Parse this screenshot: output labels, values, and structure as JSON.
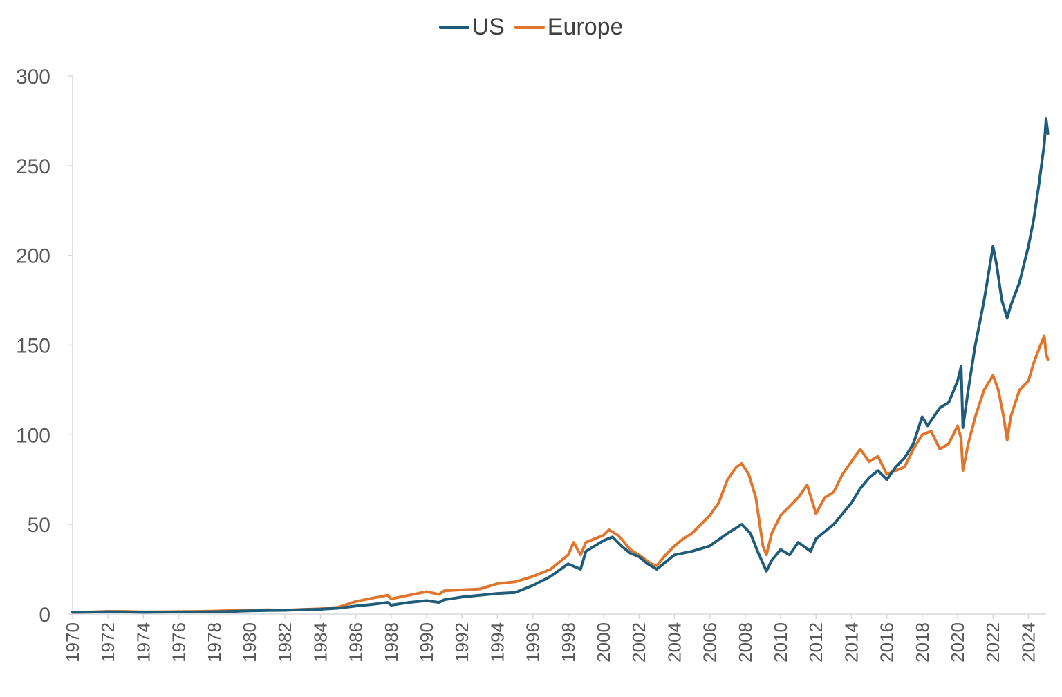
{
  "chart_data": {
    "type": "line",
    "title": "",
    "xlabel": "",
    "ylabel": "",
    "ylim": [
      0,
      300
    ],
    "xlim": [
      1970,
      2025
    ],
    "grid": false,
    "legend_position": "top-center",
    "y_ticks": [
      "0",
      "50",
      "100",
      "150",
      "200",
      "250",
      "300"
    ],
    "x_ticks": [
      "1970",
      "1972",
      "1974",
      "1976",
      "1978",
      "1980",
      "1982",
      "1984",
      "1986",
      "1988",
      "1990",
      "1992",
      "1994",
      "1996",
      "1998",
      "2000",
      "2002",
      "2004",
      "2006",
      "2008",
      "2010",
      "2012",
      "2014",
      "2016",
      "2018",
      "2020",
      "2022",
      "2024"
    ],
    "series": [
      {
        "name": "US",
        "color": "#1f5c7a",
        "points": [
          [
            1970,
            1
          ],
          [
            1971,
            1.1
          ],
          [
            1972,
            1.3
          ],
          [
            1973,
            1.2
          ],
          [
            1974,
            1
          ],
          [
            1975,
            1.1
          ],
          [
            1976,
            1.2
          ],
          [
            1977,
            1.2
          ],
          [
            1978,
            1.3
          ],
          [
            1979,
            1.5
          ],
          [
            1980,
            1.8
          ],
          [
            1981,
            2
          ],
          [
            1982,
            2.1
          ],
          [
            1983,
            2.5
          ],
          [
            1984,
            2.7
          ],
          [
            1985,
            3.3
          ],
          [
            1986,
            4.5
          ],
          [
            1987,
            5.5
          ],
          [
            1987.8,
            6.5
          ],
          [
            1988,
            5
          ],
          [
            1989,
            6.5
          ],
          [
            1990,
            7.5
          ],
          [
            1990.7,
            6.5
          ],
          [
            1991,
            8
          ],
          [
            1992,
            9.5
          ],
          [
            1993,
            10.5
          ],
          [
            1994,
            11.5
          ],
          [
            1995,
            12
          ],
          [
            1996,
            16
          ],
          [
            1997,
            21
          ],
          [
            1998,
            28
          ],
          [
            1998.7,
            25
          ],
          [
            1999,
            35
          ],
          [
            1999.5,
            38
          ],
          [
            2000,
            41
          ],
          [
            2000.5,
            43
          ],
          [
            2001,
            38
          ],
          [
            2001.5,
            34
          ],
          [
            2002,
            32
          ],
          [
            2002.5,
            28
          ],
          [
            2003,
            25
          ],
          [
            2003.5,
            29
          ],
          [
            2004,
            33
          ],
          [
            2004.5,
            34
          ],
          [
            2005,
            35
          ],
          [
            2006,
            38
          ],
          [
            2007,
            45
          ],
          [
            2007.8,
            50
          ],
          [
            2008.3,
            45
          ],
          [
            2008.7,
            35
          ],
          [
            2009.2,
            24
          ],
          [
            2009.5,
            30
          ],
          [
            2010,
            36
          ],
          [
            2010.5,
            33
          ],
          [
            2011,
            40
          ],
          [
            2011.7,
            35
          ],
          [
            2012,
            42
          ],
          [
            2013,
            50
          ],
          [
            2014,
            62
          ],
          [
            2014.5,
            70
          ],
          [
            2015,
            76
          ],
          [
            2015.5,
            80
          ],
          [
            2016,
            75
          ],
          [
            2016.5,
            82
          ],
          [
            2017,
            87
          ],
          [
            2017.5,
            95
          ],
          [
            2018,
            110
          ],
          [
            2018.3,
            105
          ],
          [
            2019,
            115
          ],
          [
            2019.5,
            118
          ],
          [
            2020,
            130
          ],
          [
            2020.2,
            138
          ],
          [
            2020.3,
            104
          ],
          [
            2020.6,
            125
          ],
          [
            2021,
            150
          ],
          [
            2021.5,
            175
          ],
          [
            2022,
            205
          ],
          [
            2022.2,
            195
          ],
          [
            2022.5,
            175
          ],
          [
            2022.8,
            165
          ],
          [
            2023,
            172
          ],
          [
            2023.5,
            185
          ],
          [
            2024,
            205
          ],
          [
            2024.3,
            220
          ],
          [
            2024.6,
            240
          ],
          [
            2024.9,
            262
          ],
          [
            2025,
            276
          ],
          [
            2025.1,
            268
          ]
        ]
      },
      {
        "name": "Europe",
        "color": "#e0752d",
        "points": [
          [
            1970,
            1
          ],
          [
            1971,
            1.2
          ],
          [
            1972,
            1.5
          ],
          [
            1973,
            1.5
          ],
          [
            1974,
            1.2
          ],
          [
            1975,
            1.3
          ],
          [
            1976,
            1.4
          ],
          [
            1977,
            1.5
          ],
          [
            1978,
            1.7
          ],
          [
            1979,
            2
          ],
          [
            1980,
            2.2
          ],
          [
            1981,
            2.4
          ],
          [
            1982,
            2.2
          ],
          [
            1983,
            2.6
          ],
          [
            1984,
            3
          ],
          [
            1985,
            3.8
          ],
          [
            1986,
            7
          ],
          [
            1987,
            9
          ],
          [
            1987.8,
            10.5
          ],
          [
            1988,
            8.5
          ],
          [
            1989,
            10.5
          ],
          [
            1990,
            12.5
          ],
          [
            1990.7,
            11
          ],
          [
            1991,
            13
          ],
          [
            1992,
            13.5
          ],
          [
            1993,
            14
          ],
          [
            1994,
            17
          ],
          [
            1995,
            18
          ],
          [
            1996,
            21
          ],
          [
            1997,
            25
          ],
          [
            1998,
            33
          ],
          [
            1998.3,
            40
          ],
          [
            1998.7,
            33
          ],
          [
            1999,
            40
          ],
          [
            1999.5,
            42
          ],
          [
            2000,
            44
          ],
          [
            2000.3,
            47
          ],
          [
            2000.8,
            44
          ],
          [
            2001,
            42
          ],
          [
            2001.5,
            36
          ],
          [
            2002,
            33
          ],
          [
            2002.7,
            28
          ],
          [
            2003,
            27
          ],
          [
            2003.5,
            33
          ],
          [
            2004,
            38
          ],
          [
            2004.5,
            42
          ],
          [
            2005,
            45
          ],
          [
            2006,
            55
          ],
          [
            2006.5,
            62
          ],
          [
            2007,
            75
          ],
          [
            2007.5,
            82
          ],
          [
            2007.8,
            84
          ],
          [
            2008.2,
            78
          ],
          [
            2008.6,
            65
          ],
          [
            2009,
            38
          ],
          [
            2009.2,
            33
          ],
          [
            2009.5,
            45
          ],
          [
            2010,
            55
          ],
          [
            2010.5,
            60
          ],
          [
            2011,
            65
          ],
          [
            2011.5,
            72
          ],
          [
            2012,
            56
          ],
          [
            2012.5,
            65
          ],
          [
            2013,
            68
          ],
          [
            2013.5,
            78
          ],
          [
            2014,
            85
          ],
          [
            2014.5,
            92
          ],
          [
            2015,
            85
          ],
          [
            2015.5,
            88
          ],
          [
            2016,
            78
          ],
          [
            2016.5,
            80
          ],
          [
            2017,
            82
          ],
          [
            2017.5,
            92
          ],
          [
            2018,
            100
          ],
          [
            2018.5,
            102
          ],
          [
            2019,
            92
          ],
          [
            2019.5,
            95
          ],
          [
            2020,
            105
          ],
          [
            2020.2,
            98
          ],
          [
            2020.3,
            80
          ],
          [
            2020.6,
            95
          ],
          [
            2021,
            110
          ],
          [
            2021.5,
            125
          ],
          [
            2022,
            133
          ],
          [
            2022.3,
            125
          ],
          [
            2022.6,
            110
          ],
          [
            2022.8,
            97
          ],
          [
            2023,
            110
          ],
          [
            2023.5,
            125
          ],
          [
            2024,
            130
          ],
          [
            2024.3,
            140
          ],
          [
            2024.6,
            148
          ],
          [
            2024.9,
            155
          ],
          [
            2025,
            145
          ],
          [
            2025.1,
            142
          ]
        ]
      }
    ]
  }
}
